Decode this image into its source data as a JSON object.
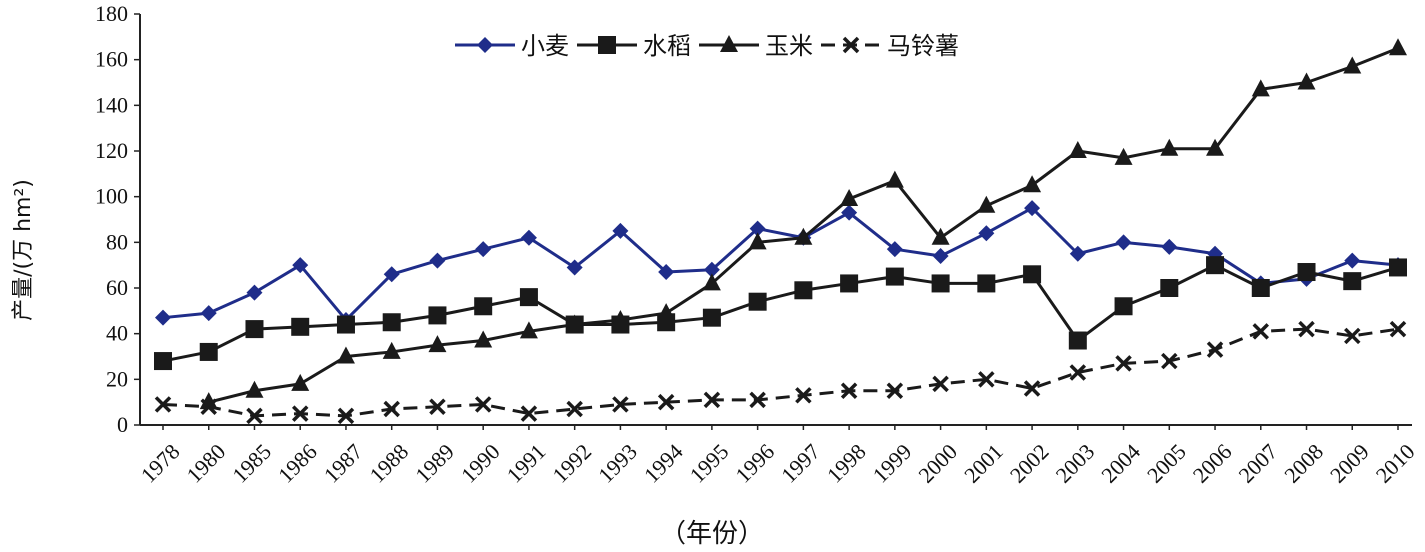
{
  "chart_data": {
    "type": "line",
    "xlabel": "（年份）",
    "ylabel": "产量/(万 hm²)",
    "ylim": [
      0,
      180
    ],
    "yticks": [
      "0",
      "20",
      "40",
      "60",
      "80",
      "100",
      "120",
      "140",
      "160",
      "180"
    ],
    "categories": [
      "1978",
      "1980",
      "1985",
      "1986",
      "1987",
      "1988",
      "1989",
      "1990",
      "1991",
      "1992",
      "1993",
      "1994",
      "1995",
      "1996",
      "1997",
      "1998",
      "1999",
      "2000",
      "2001",
      "2002",
      "2003",
      "2004",
      "2005",
      "2006",
      "2007",
      "2008",
      "2009",
      "2010"
    ],
    "grid": false,
    "legend_position": "top",
    "series": [
      {
        "name": "小麦",
        "color": "#1f2d8a",
        "marker": "diamond",
        "dash": "solid",
        "values": [
          47,
          49,
          58,
          70,
          46,
          66,
          72,
          77,
          82,
          69,
          85,
          67,
          68,
          86,
          82,
          93,
          77,
          74,
          84,
          95,
          75,
          80,
          78,
          75,
          62,
          64,
          72,
          70
        ]
      },
      {
        "name": "水稻",
        "color": "#1a1a1a",
        "marker": "square",
        "dash": "solid",
        "values": [
          28,
          32,
          42,
          43,
          44,
          45,
          48,
          52,
          56,
          44,
          44,
          45,
          47,
          54,
          59,
          62,
          65,
          62,
          62,
          66,
          37,
          52,
          60,
          70,
          60,
          67,
          63,
          69
        ]
      },
      {
        "name": "玉米",
        "color": "#1a1a1a",
        "marker": "triangle",
        "dash": "solid",
        "values": [
          null,
          10,
          15,
          18,
          30,
          32,
          35,
          37,
          41,
          44,
          46,
          49,
          62,
          80,
          82,
          99,
          107,
          82,
          96,
          105,
          120,
          117,
          121,
          121,
          147,
          150,
          157,
          165
        ]
      },
      {
        "name": "马铃薯",
        "color": "#1a1a1a",
        "marker": "x",
        "dash": "dashed",
        "values": [
          9,
          8,
          4,
          5,
          4,
          7,
          8,
          9,
          5,
          7,
          9,
          10,
          11,
          11,
          13,
          15,
          15,
          18,
          20,
          16,
          23,
          27,
          28,
          33,
          41,
          42,
          39,
          42
        ]
      }
    ]
  }
}
